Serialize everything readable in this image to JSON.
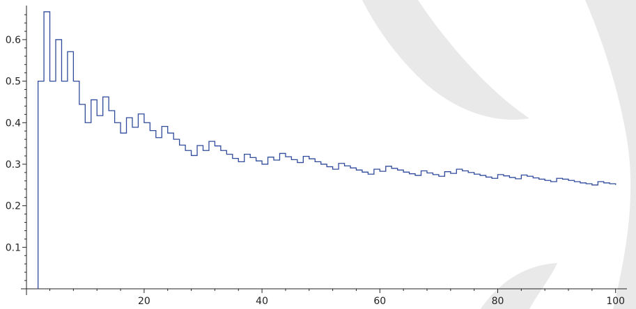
{
  "chart_data": {
    "type": "line",
    "step": true,
    "title": "",
    "xlabel": "",
    "ylabel": "",
    "xlim": [
      0,
      100
    ],
    "ylim": [
      0,
      0.667
    ],
    "x_ticks": [
      20,
      40,
      60,
      80,
      100
    ],
    "x_tick_labels": [
      "20",
      "40",
      "60",
      "80",
      "100"
    ],
    "y_ticks": [
      0.1,
      0.2,
      0.3,
      0.4,
      0.5,
      0.6
    ],
    "y_tick_labels": [
      "0.1",
      "0.2",
      "0.3",
      "0.4",
      "0.5",
      "0.6"
    ],
    "line_color": "#2f4a9c",
    "series": [
      {
        "x": [
          2,
          3,
          4,
          5,
          6,
          7,
          8,
          9,
          10,
          11,
          12,
          13,
          14,
          15,
          16,
          17,
          18,
          19,
          20,
          21,
          22,
          23,
          24,
          25,
          26,
          27,
          28,
          29,
          30,
          31,
          32,
          33,
          34,
          35,
          36,
          37,
          38,
          39,
          40,
          41,
          42,
          43,
          44,
          45,
          46,
          47,
          48,
          49,
          50,
          51,
          52,
          53,
          54,
          55,
          56,
          57,
          58,
          59,
          60,
          61,
          62,
          63,
          64,
          65,
          66,
          67,
          68,
          69,
          70,
          71,
          72,
          73,
          74,
          75,
          76,
          77,
          78,
          79,
          80,
          81,
          82,
          83,
          84,
          85,
          86,
          87,
          88,
          89,
          90,
          91,
          92,
          93,
          94,
          95,
          96,
          97,
          98,
          99,
          100
        ],
        "values": [
          0.5,
          0.667,
          0.5,
          0.6,
          0.5,
          0.571,
          0.5,
          0.444,
          0.4,
          0.455,
          0.417,
          0.462,
          0.429,
          0.4,
          0.375,
          0.412,
          0.389,
          0.421,
          0.4,
          0.381,
          0.364,
          0.391,
          0.375,
          0.36,
          0.346,
          0.333,
          0.321,
          0.345,
          0.333,
          0.355,
          0.344,
          0.333,
          0.324,
          0.314,
          0.306,
          0.324,
          0.316,
          0.308,
          0.3,
          0.317,
          0.31,
          0.326,
          0.318,
          0.311,
          0.304,
          0.319,
          0.313,
          0.306,
          0.3,
          0.294,
          0.288,
          0.302,
          0.296,
          0.291,
          0.286,
          0.281,
          0.276,
          0.288,
          0.283,
          0.295,
          0.29,
          0.286,
          0.281,
          0.277,
          0.273,
          0.284,
          0.279,
          0.275,
          0.271,
          0.282,
          0.278,
          0.288,
          0.284,
          0.28,
          0.276,
          0.273,
          0.269,
          0.266,
          0.275,
          0.272,
          0.268,
          0.265,
          0.274,
          0.271,
          0.267,
          0.264,
          0.261,
          0.258,
          0.266,
          0.264,
          0.261,
          0.258,
          0.255,
          0.253,
          0.25,
          0.258,
          0.255,
          0.253,
          0.25
        ]
      }
    ]
  }
}
